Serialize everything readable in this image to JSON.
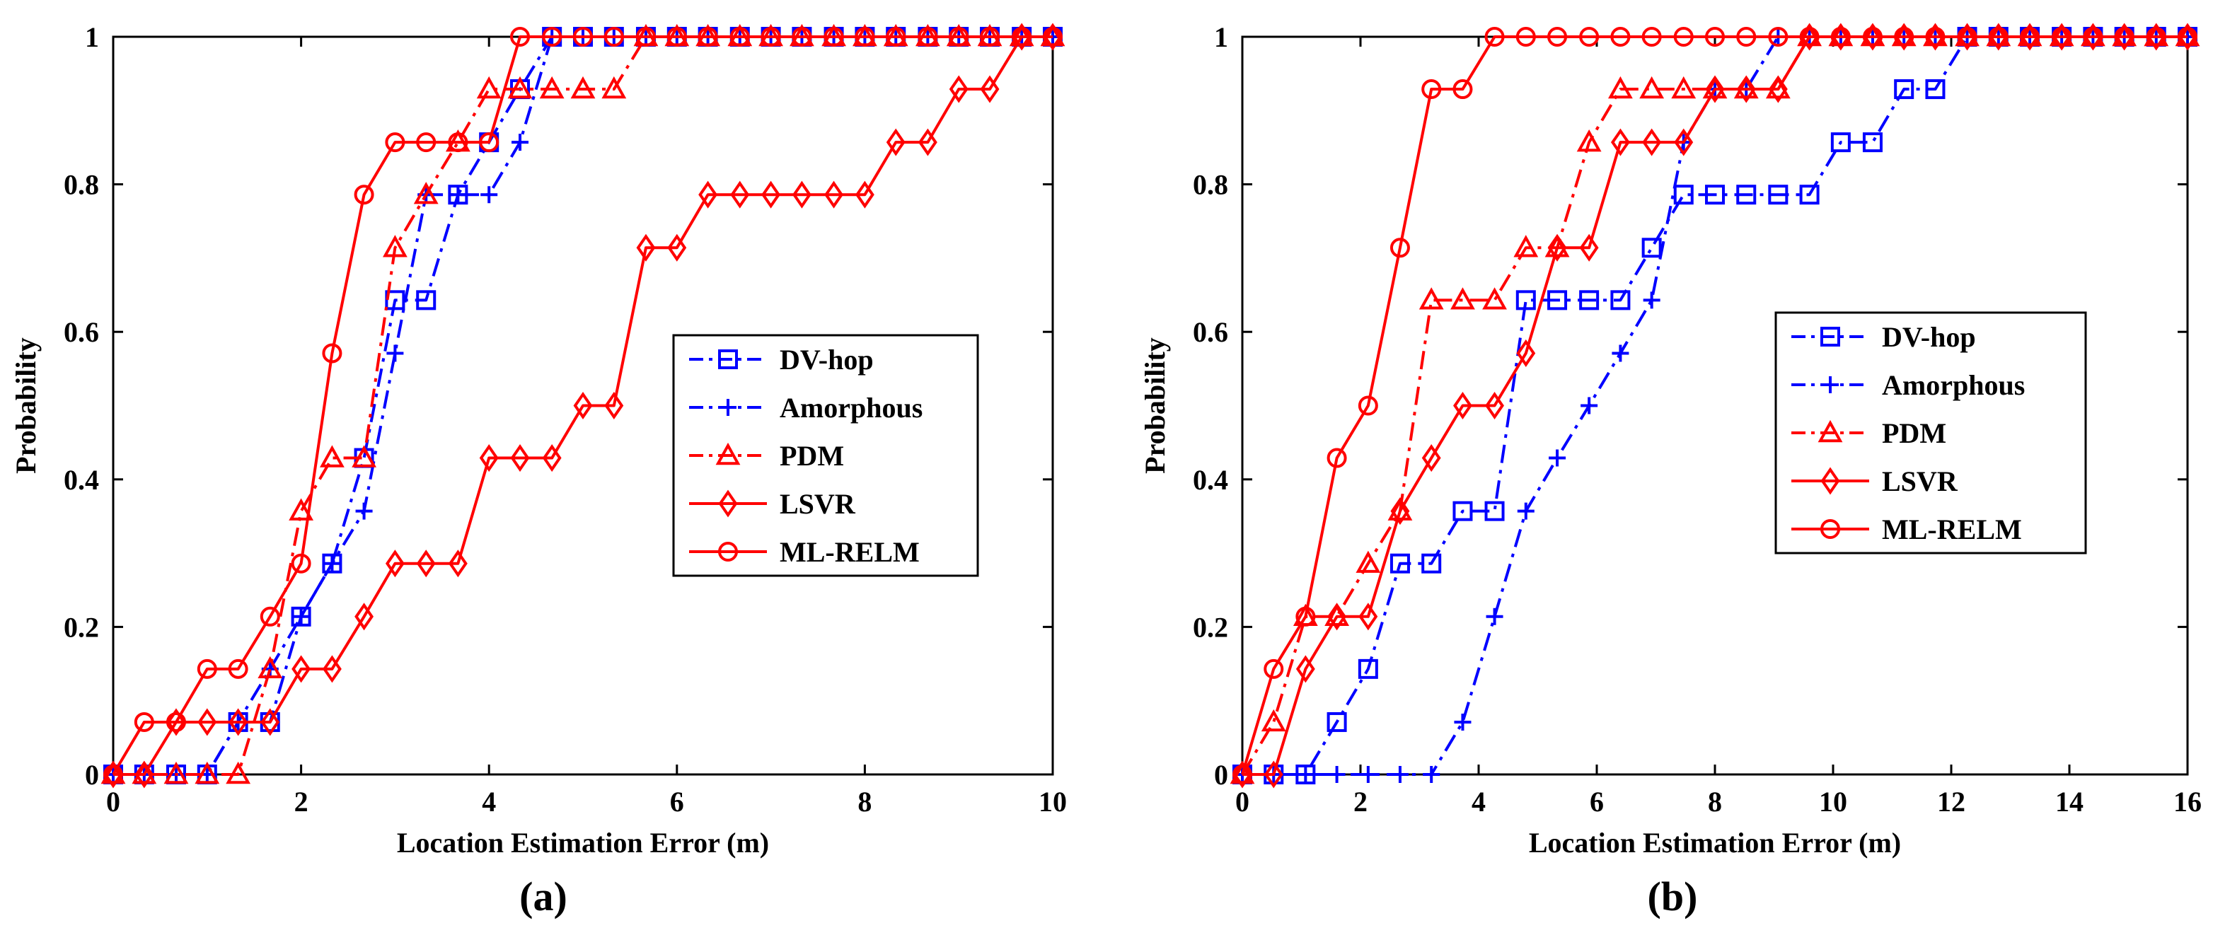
{
  "figure": {
    "label_a": "(a)",
    "label_b": "(b)"
  },
  "chart_data": [
    {
      "type": "line",
      "panel": "(a)",
      "xlabel": "Location Estimation Error (m)",
      "ylabel": "Probability",
      "xlim": [
        0,
        10
      ],
      "ylim": [
        0,
        1
      ],
      "xticks": [
        0,
        2,
        4,
        6,
        8,
        10
      ],
      "yticks": [
        0,
        0.2,
        0.4,
        0.6,
        0.8,
        1
      ],
      "xtick_labels": [
        "0",
        "2",
        "4",
        "6",
        "8",
        "10"
      ],
      "ytick_labels": [
        "0",
        "0.2",
        "0.4",
        "0.6",
        "0.8",
        "1"
      ],
      "legend_position": "center-right",
      "series": [
        {
          "name": "DV-hop",
          "color": "#0000ff",
          "dash": "dashdot",
          "marker": "square",
          "x": [
            0,
            0.33,
            0.67,
            1.0,
            1.33,
            1.67,
            2.0,
            2.33,
            2.67,
            3.0,
            3.33,
            3.67,
            4.0,
            4.33,
            4.67,
            5.0,
            5.33,
            5.67,
            6.0,
            6.33,
            6.67,
            7.0,
            7.33,
            7.67,
            8.0,
            8.33,
            8.67,
            9.0,
            9.33,
            9.67,
            10.0
          ],
          "y": [
            0,
            0,
            0,
            0,
            0.071,
            0.071,
            0.214,
            0.286,
            0.429,
            0.643,
            0.643,
            0.786,
            0.857,
            0.929,
            1,
            1,
            1,
            1,
            1,
            1,
            1,
            1,
            1,
            1,
            1,
            1,
            1,
            1,
            1,
            1,
            1
          ]
        },
        {
          "name": "Amorphous",
          "color": "#0000ff",
          "dash": "dashdot",
          "marker": "plus",
          "x": [
            0,
            0.33,
            0.67,
            1.0,
            1.33,
            1.67,
            2.0,
            2.33,
            2.67,
            3.0,
            3.33,
            3.67,
            4.0,
            4.33,
            4.67,
            5.0,
            5.33,
            5.67,
            6.0,
            6.33,
            6.67,
            7.0,
            7.33,
            7.67,
            8.0,
            8.33,
            8.67,
            9.0,
            9.33,
            9.67,
            10.0
          ],
          "y": [
            0,
            0,
            0,
            0,
            0.071,
            0.143,
            0.214,
            0.286,
            0.357,
            0.571,
            0.786,
            0.786,
            0.786,
            0.857,
            1,
            1,
            1,
            1,
            1,
            1,
            1,
            1,
            1,
            1,
            1,
            1,
            1,
            1,
            1,
            1,
            1
          ]
        },
        {
          "name": "PDM",
          "color": "#ff0000",
          "dash": "dashdot",
          "marker": "triangle",
          "x": [
            0,
            0.33,
            0.67,
            1.0,
            1.33,
            1.67,
            2.0,
            2.33,
            2.67,
            3.0,
            3.33,
            3.67,
            4.0,
            4.33,
            4.67,
            5.0,
            5.33,
            5.67,
            6.0,
            6.33,
            6.67,
            7.0,
            7.33,
            7.67,
            8.0,
            8.33,
            8.67,
            9.0,
            9.33,
            9.67,
            10.0
          ],
          "y": [
            0,
            0,
            0,
            0,
            0,
            0.143,
            0.357,
            0.429,
            0.429,
            0.714,
            0.786,
            0.857,
            0.929,
            0.929,
            0.929,
            0.929,
            0.929,
            1,
            1,
            1,
            1,
            1,
            1,
            1,
            1,
            1,
            1,
            1,
            1,
            1,
            1
          ]
        },
        {
          "name": "LSVR",
          "color": "#ff0000",
          "dash": "solid",
          "marker": "diamond",
          "x": [
            0,
            0.33,
            0.67,
            1.0,
            1.33,
            1.67,
            2.0,
            2.33,
            2.67,
            3.0,
            3.33,
            3.67,
            4.0,
            4.33,
            4.67,
            5.0,
            5.33,
            5.67,
            6.0,
            6.33,
            6.67,
            7.0,
            7.33,
            7.67,
            8.0,
            8.33,
            8.67,
            9.0,
            9.33,
            9.67,
            10.0
          ],
          "y": [
            0,
            0,
            0.071,
            0.071,
            0.071,
            0.071,
            0.143,
            0.143,
            0.214,
            0.286,
            0.286,
            0.286,
            0.429,
            0.429,
            0.429,
            0.5,
            0.5,
            0.714,
            0.714,
            0.786,
            0.786,
            0.786,
            0.786,
            0.786,
            0.786,
            0.857,
            0.857,
            0.929,
            0.929,
            1,
            1
          ]
        },
        {
          "name": "ML-RELM",
          "color": "#ff0000",
          "dash": "solid",
          "marker": "circle",
          "x": [
            0,
            0.33,
            0.67,
            1.0,
            1.33,
            1.67,
            2.0,
            2.33,
            2.67,
            3.0,
            3.33,
            3.67,
            4.0,
            4.33,
            4.67,
            5.0,
            5.33,
            5.67,
            6.0,
            6.33,
            6.67,
            7.0,
            7.33,
            7.67,
            8.0,
            8.33,
            8.67,
            9.0,
            9.33,
            9.67,
            10.0
          ],
          "y": [
            0,
            0.071,
            0.071,
            0.143,
            0.143,
            0.214,
            0.286,
            0.571,
            0.786,
            0.857,
            0.857,
            0.857,
            0.857,
            1,
            1,
            1,
            1,
            1,
            1,
            1,
            1,
            1,
            1,
            1,
            1,
            1,
            1,
            1,
            1,
            1,
            1
          ]
        }
      ]
    },
    {
      "type": "line",
      "panel": "(b)",
      "xlabel": "Location Estimation Error (m)",
      "ylabel": "Probability",
      "xlim": [
        0,
        16
      ],
      "ylim": [
        0,
        1
      ],
      "xticks": [
        0,
        2,
        4,
        6,
        8,
        10,
        12,
        14,
        16
      ],
      "yticks": [
        0,
        0.2,
        0.4,
        0.6,
        0.8,
        1
      ],
      "xtick_labels": [
        "0",
        "2",
        "4",
        "6",
        "8",
        "10",
        "12",
        "14",
        "16"
      ],
      "ytick_labels": [
        "0",
        "0.2",
        "0.4",
        "0.6",
        "0.8",
        "1"
      ],
      "legend_position": "top-right",
      "series": [
        {
          "name": "DV-hop",
          "color": "#0000ff",
          "dash": "dashdot",
          "marker": "square",
          "x": [
            0,
            0.53,
            1.07,
            1.6,
            2.13,
            2.67,
            3.2,
            3.73,
            4.27,
            4.8,
            5.33,
            5.87,
            6.4,
            6.93,
            7.47,
            8.0,
            8.53,
            9.07,
            9.6,
            10.13,
            10.67,
            11.2,
            11.73,
            12.27,
            12.8,
            13.33,
            13.87,
            14.4,
            14.93,
            15.47,
            16.0
          ],
          "y": [
            0,
            0,
            0,
            0.071,
            0.143,
            0.286,
            0.286,
            0.357,
            0.357,
            0.643,
            0.643,
            0.643,
            0.643,
            0.714,
            0.786,
            0.786,
            0.786,
            0.786,
            0.786,
            0.857,
            0.857,
            0.929,
            0.929,
            1,
            1,
            1,
            1,
            1,
            1,
            1,
            1
          ]
        },
        {
          "name": "Amorphous",
          "color": "#0000ff",
          "dash": "dashdot",
          "marker": "plus",
          "x": [
            0,
            0.53,
            1.07,
            1.6,
            2.13,
            2.67,
            3.2,
            3.73,
            4.27,
            4.8,
            5.33,
            5.87,
            6.4,
            6.93,
            7.47,
            8.0,
            8.53,
            9.07,
            9.6,
            10.13,
            10.67,
            11.2,
            11.73,
            12.27,
            12.8,
            13.33,
            13.87,
            14.4,
            14.93,
            15.47,
            16.0
          ],
          "y": [
            0,
            0,
            0,
            0,
            0,
            0,
            0,
            0.071,
            0.214,
            0.357,
            0.429,
            0.5,
            0.571,
            0.643,
            0.857,
            0.929,
            0.929,
            1,
            1,
            1,
            1,
            1,
            1,
            1,
            1,
            1,
            1,
            1,
            1,
            1,
            1
          ]
        },
        {
          "name": "PDM",
          "color": "#ff0000",
          "dash": "dashdot",
          "marker": "triangle",
          "x": [
            0,
            0.53,
            1.07,
            1.6,
            2.13,
            2.67,
            3.2,
            3.73,
            4.27,
            4.8,
            5.33,
            5.87,
            6.4,
            6.93,
            7.47,
            8.0,
            8.53,
            9.07,
            9.6,
            10.13,
            10.67,
            11.2,
            11.73,
            12.27,
            12.8,
            13.33,
            13.87,
            14.4,
            14.93,
            15.47,
            16.0
          ],
          "y": [
            0,
            0.071,
            0.214,
            0.214,
            0.286,
            0.357,
            0.643,
            0.643,
            0.643,
            0.714,
            0.714,
            0.857,
            0.929,
            0.929,
            0.929,
            0.929,
            0.929,
            0.929,
            1,
            1,
            1,
            1,
            1,
            1,
            1,
            1,
            1,
            1,
            1,
            1,
            1
          ]
        },
        {
          "name": "LSVR",
          "color": "#ff0000",
          "dash": "solid",
          "marker": "diamond",
          "x": [
            0,
            0.53,
            1.07,
            1.6,
            2.13,
            2.67,
            3.2,
            3.73,
            4.27,
            4.8,
            5.33,
            5.87,
            6.4,
            6.93,
            7.47,
            8.0,
            8.53,
            9.07,
            9.6,
            10.13,
            10.67,
            11.2,
            11.73,
            12.27,
            12.8,
            13.33,
            13.87,
            14.4,
            14.93,
            15.47,
            16.0
          ],
          "y": [
            0,
            0,
            0.143,
            0.214,
            0.214,
            0.357,
            0.429,
            0.5,
            0.5,
            0.571,
            0.714,
            0.714,
            0.857,
            0.857,
            0.857,
            0.929,
            0.929,
            0.929,
            1,
            1,
            1,
            1,
            1,
            1,
            1,
            1,
            1,
            1,
            1,
            1,
            1
          ]
        },
        {
          "name": "ML-RELM",
          "color": "#ff0000",
          "dash": "solid",
          "marker": "circle",
          "x": [
            0,
            0.53,
            1.07,
            1.6,
            2.13,
            2.67,
            3.2,
            3.73,
            4.27,
            4.8,
            5.33,
            5.87,
            6.4,
            6.93,
            7.47,
            8.0,
            8.53,
            9.07,
            9.6,
            10.13,
            10.67,
            11.2,
            11.73,
            12.27,
            12.8,
            13.33,
            13.87,
            14.4,
            14.93,
            15.47,
            16.0
          ],
          "y": [
            0,
            0.143,
            0.214,
            0.429,
            0.5,
            0.714,
            0.929,
            0.929,
            1,
            1,
            1,
            1,
            1,
            1,
            1,
            1,
            1,
            1,
            1,
            1,
            1,
            1,
            1,
            1,
            1,
            1,
            1,
            1,
            1,
            1,
            1
          ]
        }
      ]
    }
  ]
}
